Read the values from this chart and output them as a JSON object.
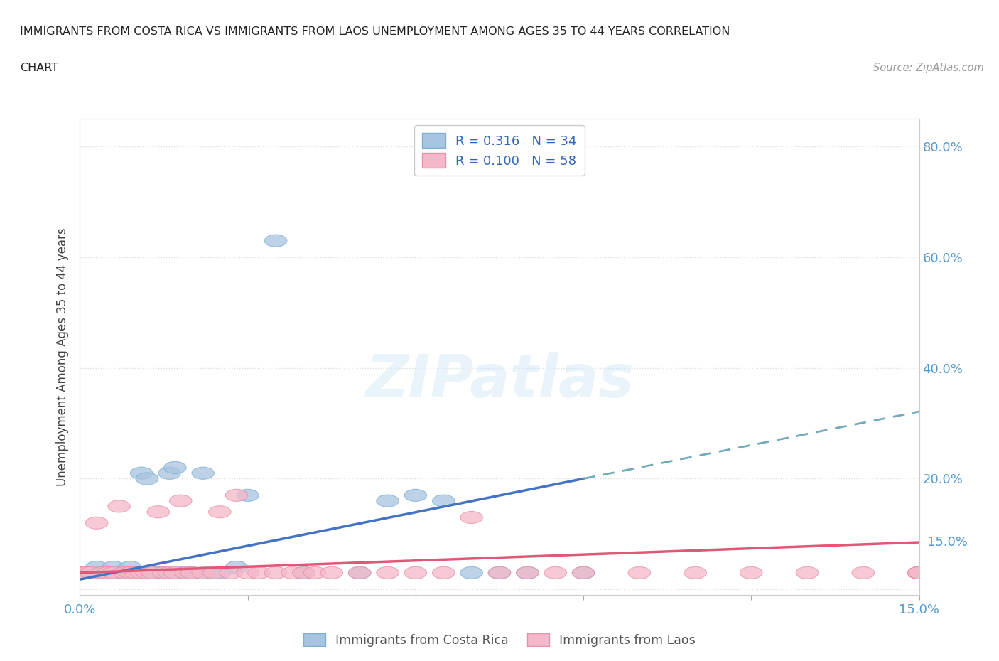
{
  "title_line1": "IMMIGRANTS FROM COSTA RICA VS IMMIGRANTS FROM LAOS UNEMPLOYMENT AMONG AGES 35 TO 44 YEARS CORRELATION",
  "title_line2": "CHART",
  "source_text": "Source: ZipAtlas.com",
  "watermark": "ZIPatlas",
  "legend_r1": "R = 0.316",
  "legend_n1": "N = 34",
  "legend_r2": "R = 0.100",
  "legend_n2": "N = 58",
  "ylabel": "Unemployment Among Ages 35 to 44 years",
  "xlim": [
    0.0,
    0.15
  ],
  "ylim": [
    -0.01,
    0.85
  ],
  "color_costa_rica": "#a8c4e0",
  "color_laos": "#f4b8c8",
  "color_costa_rica_border": "#7baed4",
  "color_laos_border": "#e890a8",
  "color_costa_rica_line": "#4472c4",
  "color_laos_line": "#e05878",
  "color_costa_rica_dashed": "#70aabb",
  "scatter_costa_rica_x": [
    0.0,
    0.002,
    0.003,
    0.004,
    0.005,
    0.006,
    0.007,
    0.008,
    0.009,
    0.01,
    0.011,
    0.012,
    0.013,
    0.014,
    0.015,
    0.016,
    0.017,
    0.018,
    0.02,
    0.022,
    0.023,
    0.025,
    0.028,
    0.03,
    0.035,
    0.04,
    0.05,
    0.055,
    0.06,
    0.065,
    0.07,
    0.075,
    0.08,
    0.09
  ],
  "scatter_costa_rica_y": [
    0.03,
    0.03,
    0.04,
    0.03,
    0.03,
    0.04,
    0.03,
    0.03,
    0.04,
    0.03,
    0.21,
    0.2,
    0.03,
    0.03,
    0.03,
    0.21,
    0.22,
    0.03,
    0.03,
    0.21,
    0.03,
    0.03,
    0.04,
    0.17,
    0.63,
    0.03,
    0.03,
    0.16,
    0.17,
    0.16,
    0.03,
    0.03,
    0.03,
    0.03
  ],
  "scatter_laos_x": [
    0.0,
    0.001,
    0.002,
    0.003,
    0.004,
    0.005,
    0.006,
    0.007,
    0.008,
    0.009,
    0.01,
    0.011,
    0.012,
    0.013,
    0.014,
    0.015,
    0.016,
    0.017,
    0.018,
    0.019,
    0.02,
    0.022,
    0.024,
    0.025,
    0.027,
    0.028,
    0.03,
    0.032,
    0.035,
    0.038,
    0.04,
    0.042,
    0.045,
    0.05,
    0.055,
    0.06,
    0.065,
    0.07,
    0.075,
    0.08,
    0.085,
    0.09,
    0.1,
    0.11,
    0.12,
    0.13,
    0.14,
    0.15,
    0.15,
    0.15,
    0.15,
    0.15,
    0.15,
    0.15,
    0.15,
    0.15,
    0.15,
    0.15
  ],
  "scatter_laos_y": [
    0.03,
    0.03,
    0.03,
    0.12,
    0.03,
    0.03,
    0.03,
    0.15,
    0.03,
    0.03,
    0.03,
    0.03,
    0.03,
    0.03,
    0.14,
    0.03,
    0.03,
    0.03,
    0.16,
    0.03,
    0.03,
    0.03,
    0.03,
    0.14,
    0.03,
    0.17,
    0.03,
    0.03,
    0.03,
    0.03,
    0.03,
    0.03,
    0.03,
    0.03,
    0.03,
    0.03,
    0.03,
    0.13,
    0.03,
    0.03,
    0.03,
    0.03,
    0.03,
    0.03,
    0.03,
    0.03,
    0.03,
    0.03,
    0.03,
    0.03,
    0.03,
    0.03,
    0.03,
    0.03,
    0.03,
    0.03,
    0.03,
    0.03
  ],
  "cr_line_x0": 0.0,
  "cr_line_y0": 0.018,
  "cr_line_x1": 0.09,
  "cr_line_y1": 0.2,
  "laos_line_x0": 0.0,
  "laos_line_y0": 0.03,
  "laos_line_x1": 0.15,
  "laos_line_y1": 0.085
}
